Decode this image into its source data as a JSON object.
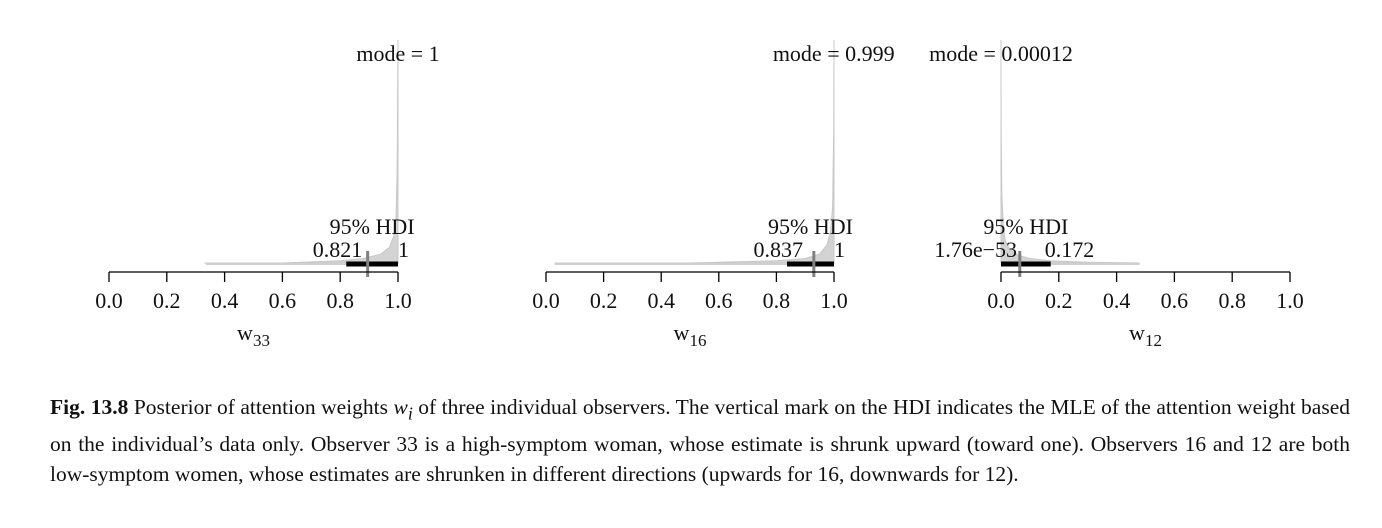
{
  "chart_data": [
    {
      "type": "area",
      "xlabel": "w",
      "xlabel_sub": "33",
      "xlim": [
        0,
        1
      ],
      "ticks": [
        "0.0",
        "0.2",
        "0.4",
        "0.6",
        "0.8",
        "1.0"
      ],
      "mode_label": "mode = 1",
      "mode": 1,
      "hdi_label": "95% HDI",
      "hdi_low": 0.821,
      "hdi_high": 1,
      "hdi_low_label": "0.821",
      "hdi_high_label": "1",
      "mle": 0.895,
      "sample_range": [
        0.335,
        1
      ],
      "density": {
        "x": [
          0.33,
          0.6,
          0.8,
          0.88,
          0.94,
          0.97,
          0.985,
          0.993,
          0.997,
          1.0
        ],
        "y": [
          0.0,
          0.0,
          0.01,
          0.02,
          0.04,
          0.07,
          0.12,
          0.2,
          0.4,
          1.0
        ]
      }
    },
    {
      "type": "area",
      "xlabel": "w",
      "xlabel_sub": "16",
      "xlim": [
        0,
        1
      ],
      "ticks": [
        "0.0",
        "0.2",
        "0.4",
        "0.6",
        "0.8",
        "1.0"
      ],
      "mode_label": "mode = 0.999",
      "mode": 0.999,
      "hdi_label": "95% HDI",
      "hdi_low": 0.837,
      "hdi_high": 1,
      "hdi_low_label": "0.837",
      "hdi_high_label": "1",
      "mle": 0.93,
      "sample_range": [
        0.03,
        1
      ],
      "density": {
        "x": [
          0.03,
          0.5,
          0.8,
          0.9,
          0.95,
          0.975,
          0.988,
          0.995,
          0.999,
          1.0
        ],
        "y": [
          0.0,
          0.0,
          0.01,
          0.02,
          0.04,
          0.08,
          0.14,
          0.25,
          0.6,
          1.0
        ]
      }
    },
    {
      "type": "area",
      "xlabel": "w",
      "xlabel_sub": "12",
      "xlim": [
        0,
        1
      ],
      "ticks": [
        "0.0",
        "0.2",
        "0.4",
        "0.6",
        "0.8",
        "1.0"
      ],
      "mode_label": "mode = 0.00012",
      "mode": 0.00012,
      "hdi_label": "95% HDI",
      "hdi_low": 1.76e-53,
      "hdi_high": 0.172,
      "hdi_low_label": "1.76e−53",
      "hdi_high_label": "0.172",
      "mle": 0.065,
      "sample_range": [
        0,
        0.48
      ],
      "density": {
        "x": [
          0.0,
          0.0005,
          0.003,
          0.008,
          0.015,
          0.03,
          0.06,
          0.1,
          0.17,
          0.3,
          0.48
        ],
        "y": [
          1.0,
          0.6,
          0.3,
          0.17,
          0.1,
          0.06,
          0.035,
          0.02,
          0.01,
          0.003,
          0.0
        ]
      }
    }
  ],
  "caption": {
    "label": "Fig. 13.8",
    "text_before": " Posterior of attention weights ",
    "symbol": "w",
    "symbol_sub": "i",
    "text_after": " of three individual observers. The vertical mark on the HDI indicates the MLE of the attention weight based on the individual’s data only. Observer 33 is a high-symptom woman, whose estimate is shrunk upward (toward one). Observers 16 and 12 are both low-symptom women, whose estimates are shrunken in different directions (upwards for 16, downwards for 12)."
  }
}
